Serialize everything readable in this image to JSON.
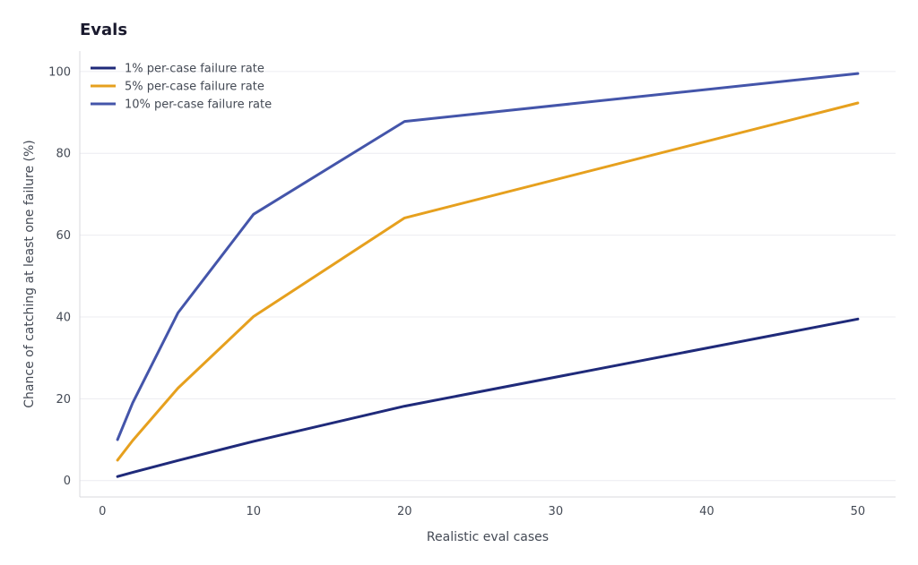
{
  "chart_data": {
    "type": "line",
    "title": "Evals",
    "xlabel": "Realistic eval cases",
    "ylabel": "Chance of catching at least one failure (%)",
    "xlim": [
      -1.5,
      52.5
    ],
    "ylim": [
      -4,
      105
    ],
    "xticks": [
      0,
      10,
      20,
      30,
      40,
      50
    ],
    "yticks": [
      0,
      20,
      40,
      60,
      80,
      100
    ],
    "grid": true,
    "legend_position": "top-left",
    "x": [
      1,
      2,
      5,
      10,
      20,
      50
    ],
    "series": [
      {
        "name": "1% per-case failure rate",
        "color": "#1f2a7a",
        "values": [
          1.0,
          2.0,
          4.9,
          9.6,
          18.2,
          39.5
        ]
      },
      {
        "name": "5% per-case failure rate",
        "color": "#e6a01e",
        "values": [
          5.0,
          9.8,
          22.6,
          40.1,
          64.2,
          92.3
        ]
      },
      {
        "name": "10% per-case failure rate",
        "color": "#4455aa",
        "values": [
          10.0,
          19.0,
          41.0,
          65.1,
          87.8,
          99.5
        ]
      }
    ]
  }
}
